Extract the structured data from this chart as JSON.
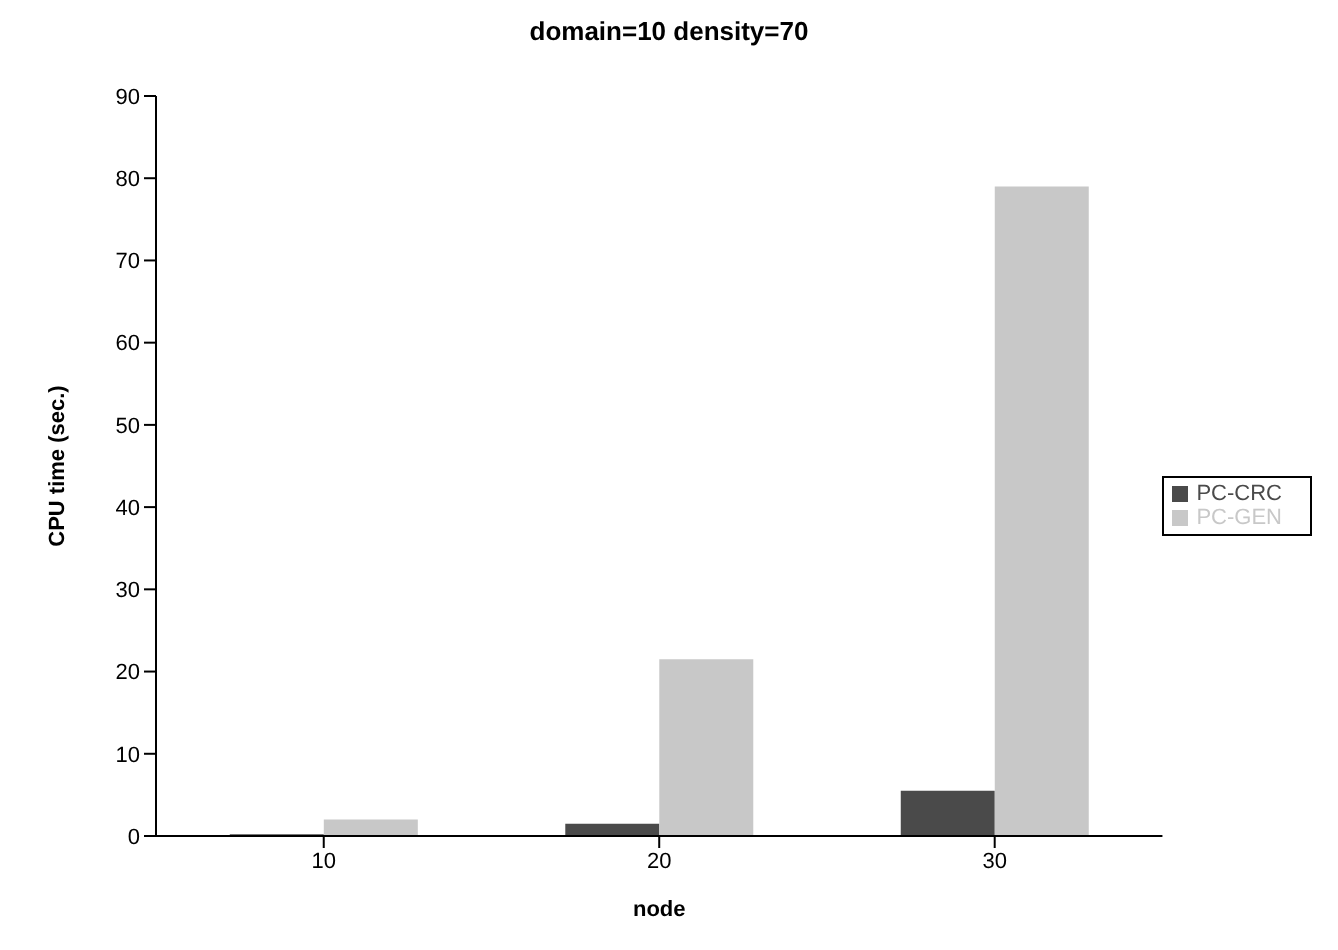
{
  "chart_data": {
    "type": "bar",
    "title": "domain=10  density=70",
    "xlabel": "node",
    "ylabel": "CPU time (sec.)",
    "categories": [
      "10",
      "20",
      "30"
    ],
    "series": [
      {
        "name": "PC-CRC",
        "color": "#4a4a4a",
        "values": [
          0.2,
          1.5,
          5.5
        ]
      },
      {
        "name": "PC-GEN",
        "color": "#c8c8c8",
        "values": [
          2,
          21.5,
          79
        ]
      }
    ],
    "ylim": [
      0,
      90
    ],
    "yticks": [
      0,
      10,
      20,
      30,
      40,
      50,
      60,
      70,
      80,
      90
    ],
    "grid": false,
    "legend": "right"
  }
}
